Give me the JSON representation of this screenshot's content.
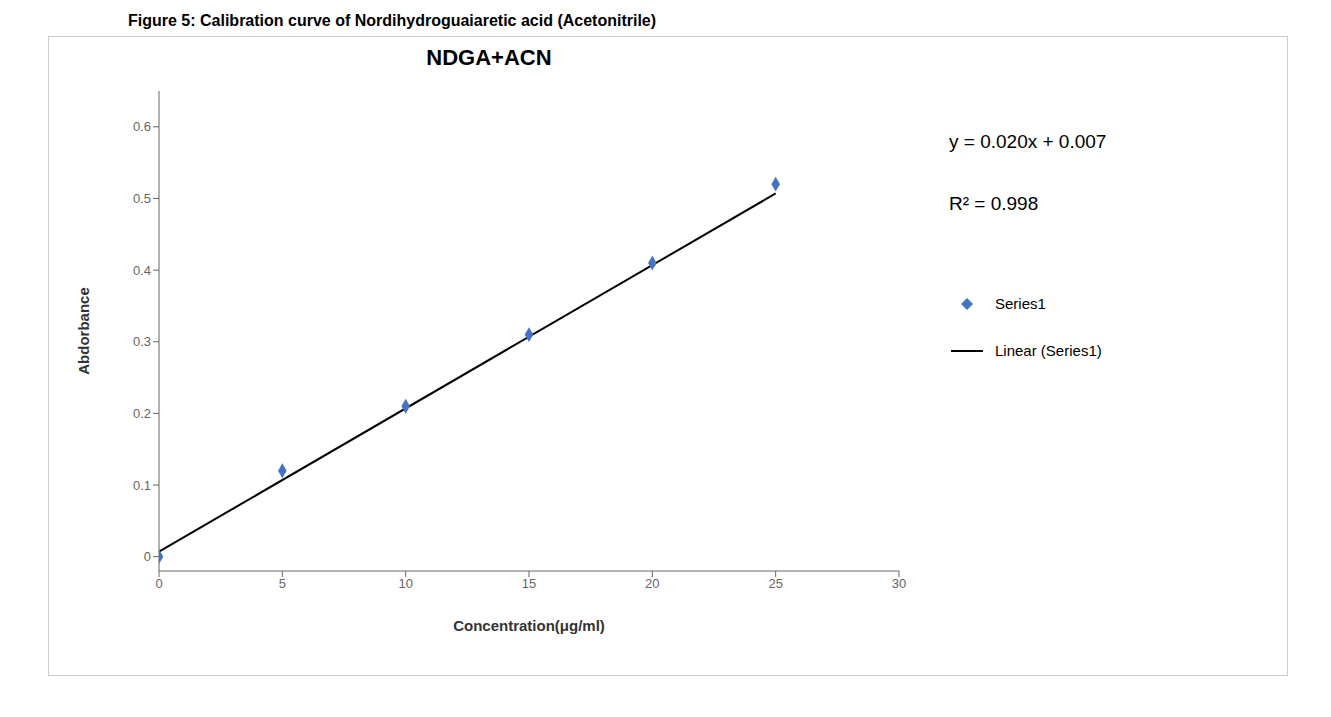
{
  "chart_data": {
    "type": "scatter",
    "title": "Figure 5: Calibration curve of Nordihydroguaiaretic acid (Acetonitrile)",
    "subtitle": "NDGA+ACN",
    "x_label": "Concentration(μg/ml)",
    "y_label": "Abdorbance",
    "series": [
      {
        "name": "Series1",
        "type": "scatter",
        "color": "#4472C4",
        "marker": "diamond",
        "x": [
          0,
          5,
          10,
          15,
          20,
          25
        ],
        "values": [
          0.0,
          0.12,
          0.21,
          0.31,
          0.41,
          0.52
        ]
      },
      {
        "name": "Linear (Series1)",
        "type": "line",
        "color": "black",
        "line_style": "solid",
        "x": [
          0,
          25
        ],
        "values": [
          0.007,
          0.507
        ]
      }
    ],
    "annotations": [
      "y = 0.020x + 0.007",
      "R² = 0.998"
    ],
    "xlim": [
      0,
      30
    ],
    "ylim": [
      -0.02,
      0.65
    ],
    "xticks": [
      0,
      5,
      10,
      15,
      20,
      25,
      30
    ],
    "yticks": [
      0,
      0.1,
      0.2,
      0.3,
      0.4,
      0.5,
      0.6
    ],
    "grid": false,
    "legend": "right"
  }
}
